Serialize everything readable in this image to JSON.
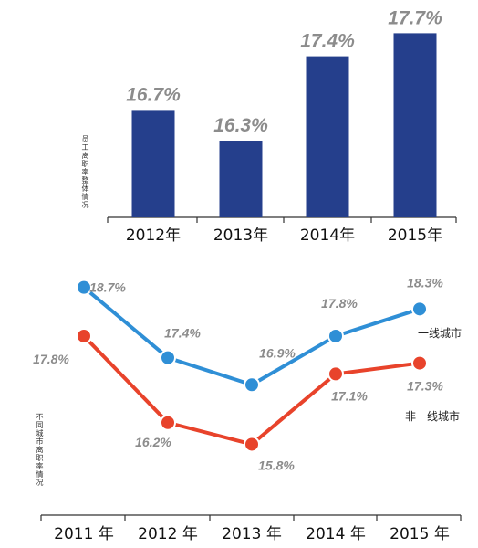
{
  "chart_data": [
    {
      "type": "bar",
      "ylabel": "员工离职率整体情况",
      "categories": [
        "2012年",
        "2013年",
        "2014年",
        "2015年"
      ],
      "values": [
        16.7,
        16.3,
        17.4,
        17.7
      ],
      "value_labels": [
        "16.7%",
        "16.3%",
        "17.4%",
        "17.7%"
      ],
      "ylim": [
        15.3,
        17.8
      ],
      "colors": {
        "bar": "#253f8c"
      }
    },
    {
      "type": "line",
      "ylabel": "不同城市离职率情况",
      "categories": [
        "2011 年",
        "2012 年",
        "2013 年",
        "2014 年",
        "2015 年"
      ],
      "ylim": [
        15.2,
        19.2
      ],
      "series": [
        {
          "name": "一线城市",
          "values": [
            18.7,
            17.4,
            16.9,
            17.8,
            18.3
          ],
          "value_labels": [
            "18.7%",
            "17.4%",
            "16.9%",
            "17.8%",
            "18.3%"
          ],
          "color": "#2f8fd6"
        },
        {
          "name": "非一线城市",
          "values": [
            17.8,
            16.2,
            15.8,
            17.1,
            17.3
          ],
          "value_labels": [
            "17.8%",
            "16.2%",
            "15.8%",
            "17.1%",
            "17.3%"
          ],
          "color": "#e8432b"
        }
      ]
    }
  ]
}
